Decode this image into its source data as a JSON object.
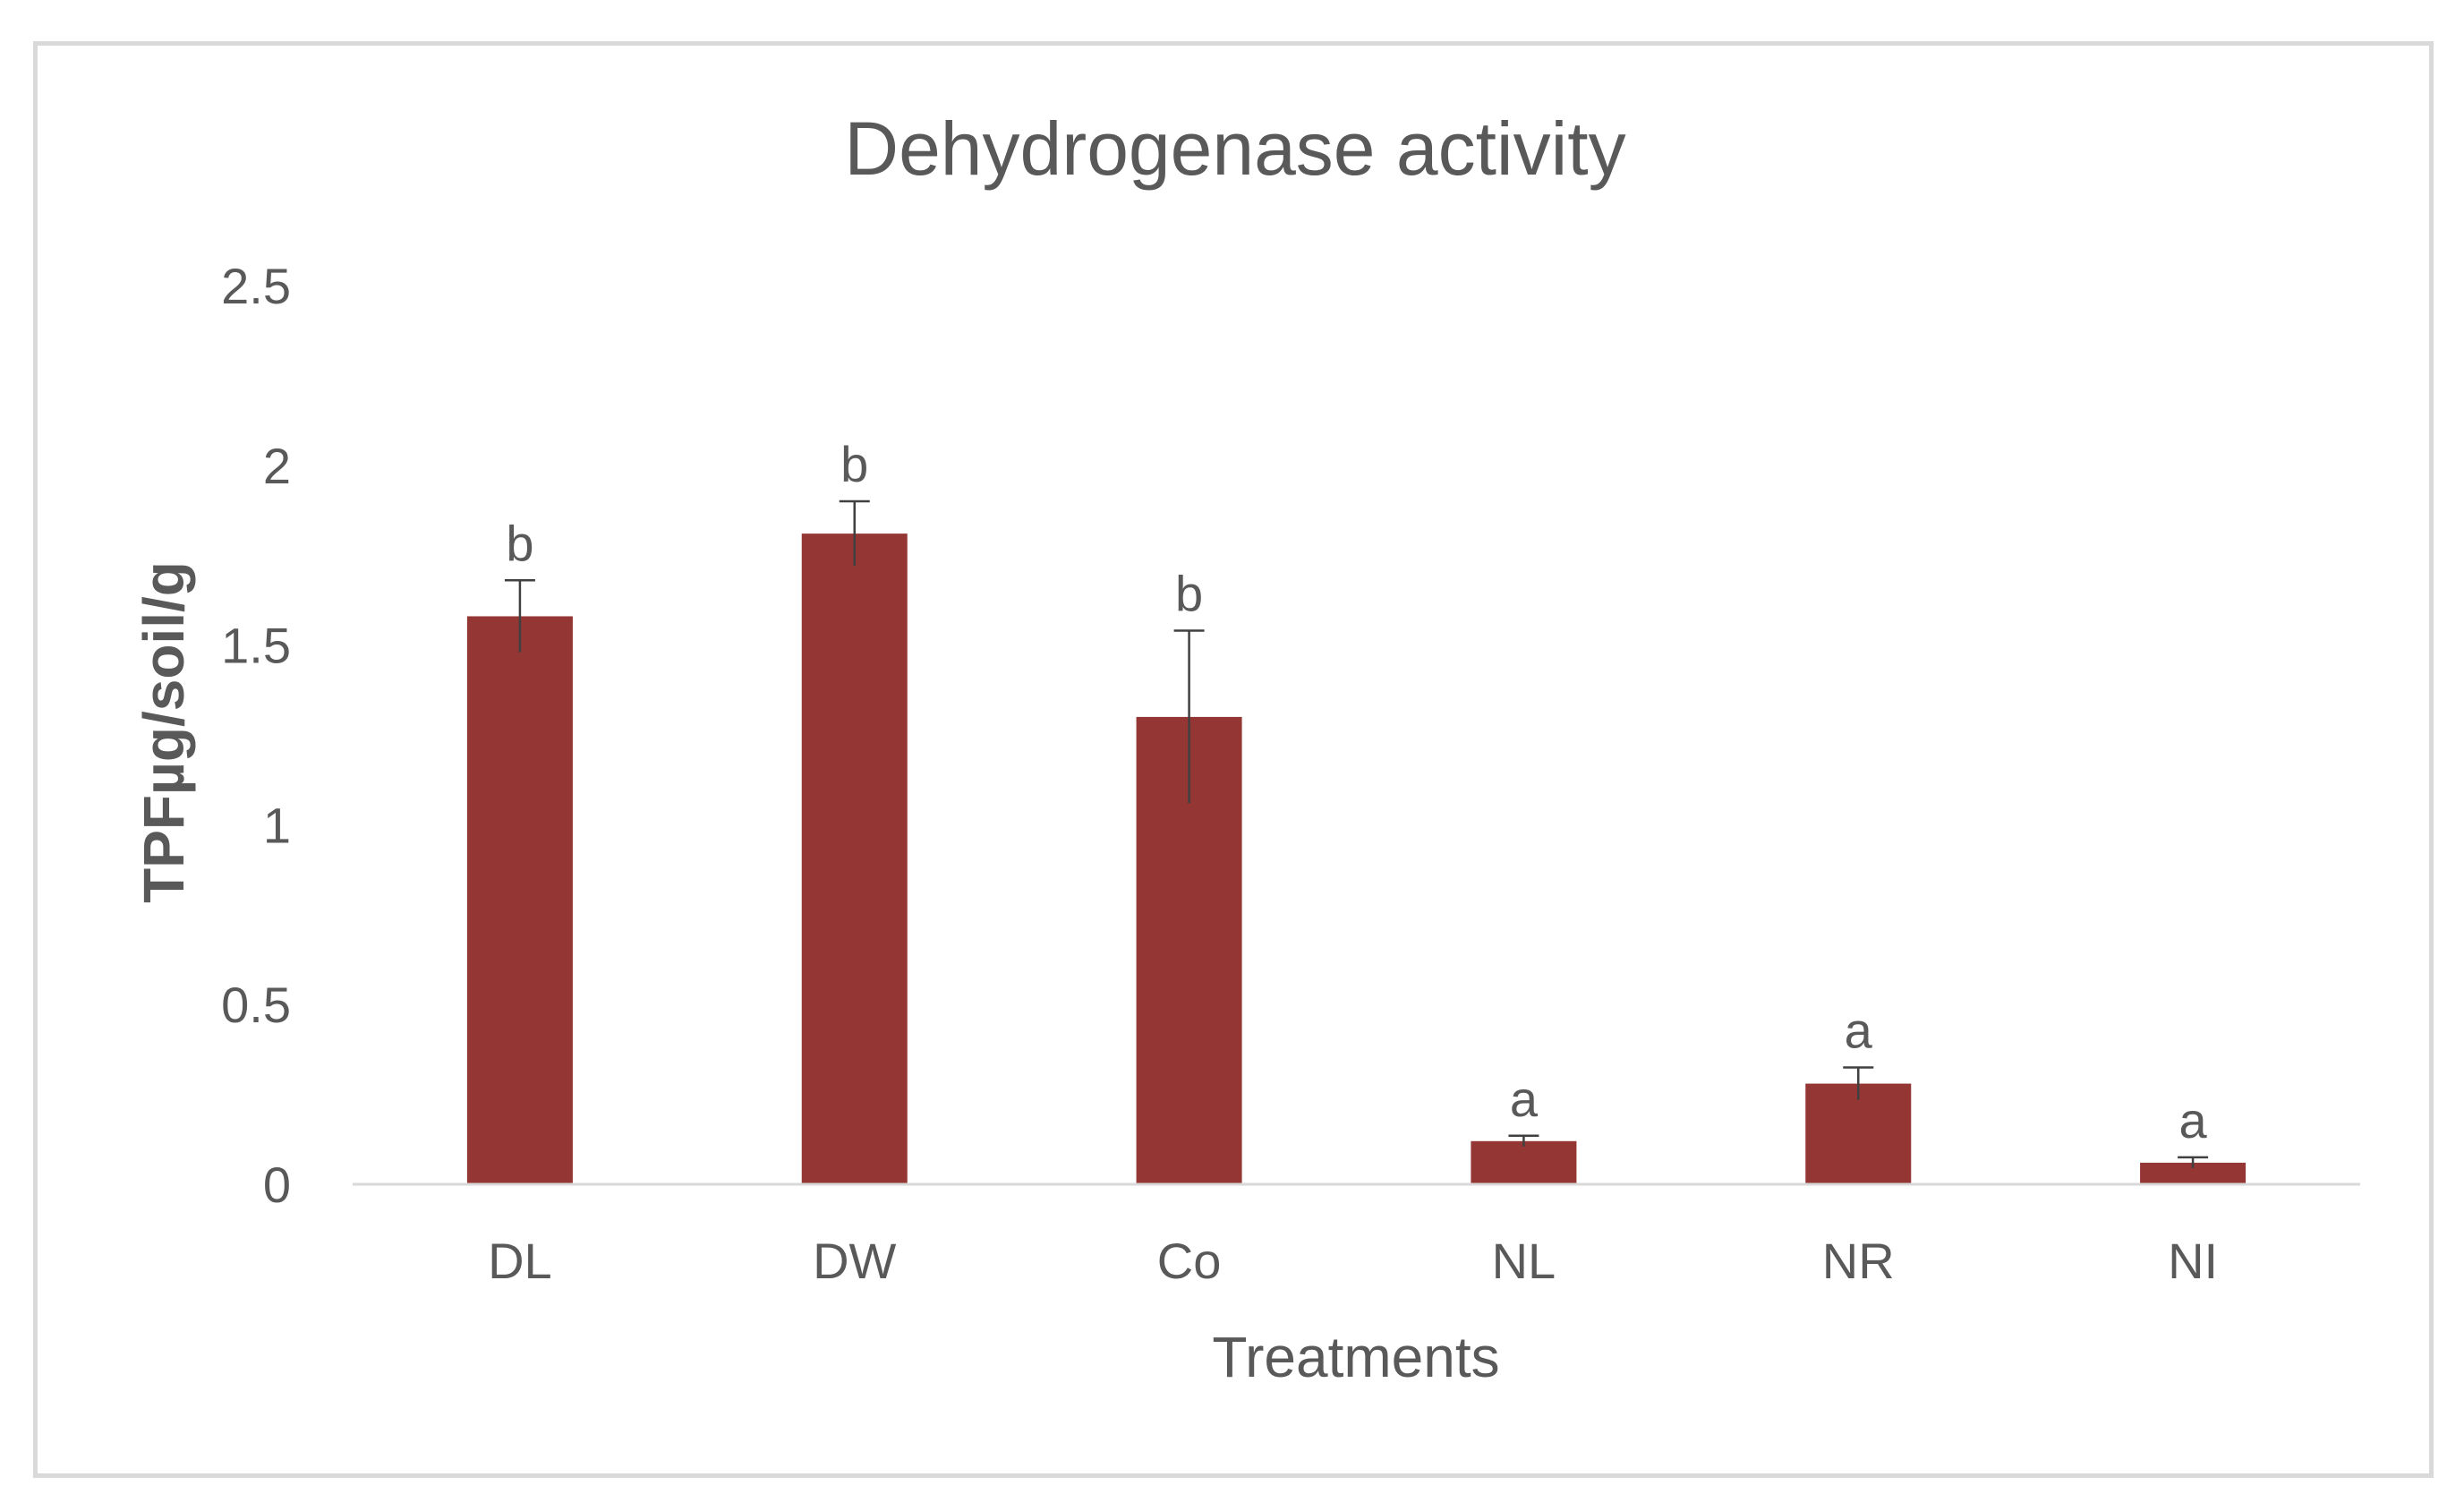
{
  "chart_data": {
    "type": "bar",
    "title": "Dehydrogenase activity",
    "xlabel": "Treatments",
    "ylabel": "TPFµg/soil/g",
    "categories": [
      "DL",
      "DW",
      "Co",
      "NL",
      "NR",
      "NI"
    ],
    "values": [
      1.58,
      1.81,
      1.3,
      0.12,
      0.28,
      0.06
    ],
    "error": [
      0.1,
      0.09,
      0.24,
      0.015,
      0.045,
      0.015
    ],
    "annotations": [
      "b",
      "b",
      "b",
      "a",
      "a",
      "a"
    ],
    "ylim": [
      0,
      2.5
    ],
    "yticks": [
      "0",
      "0.5",
      "1",
      "1.5",
      "2",
      "2.5"
    ],
    "grid": false,
    "legend": "none",
    "colors": {
      "bar": "#943634",
      "text": "#595959",
      "axis": "#d9d9d9",
      "error_bar": "#404040"
    }
  }
}
